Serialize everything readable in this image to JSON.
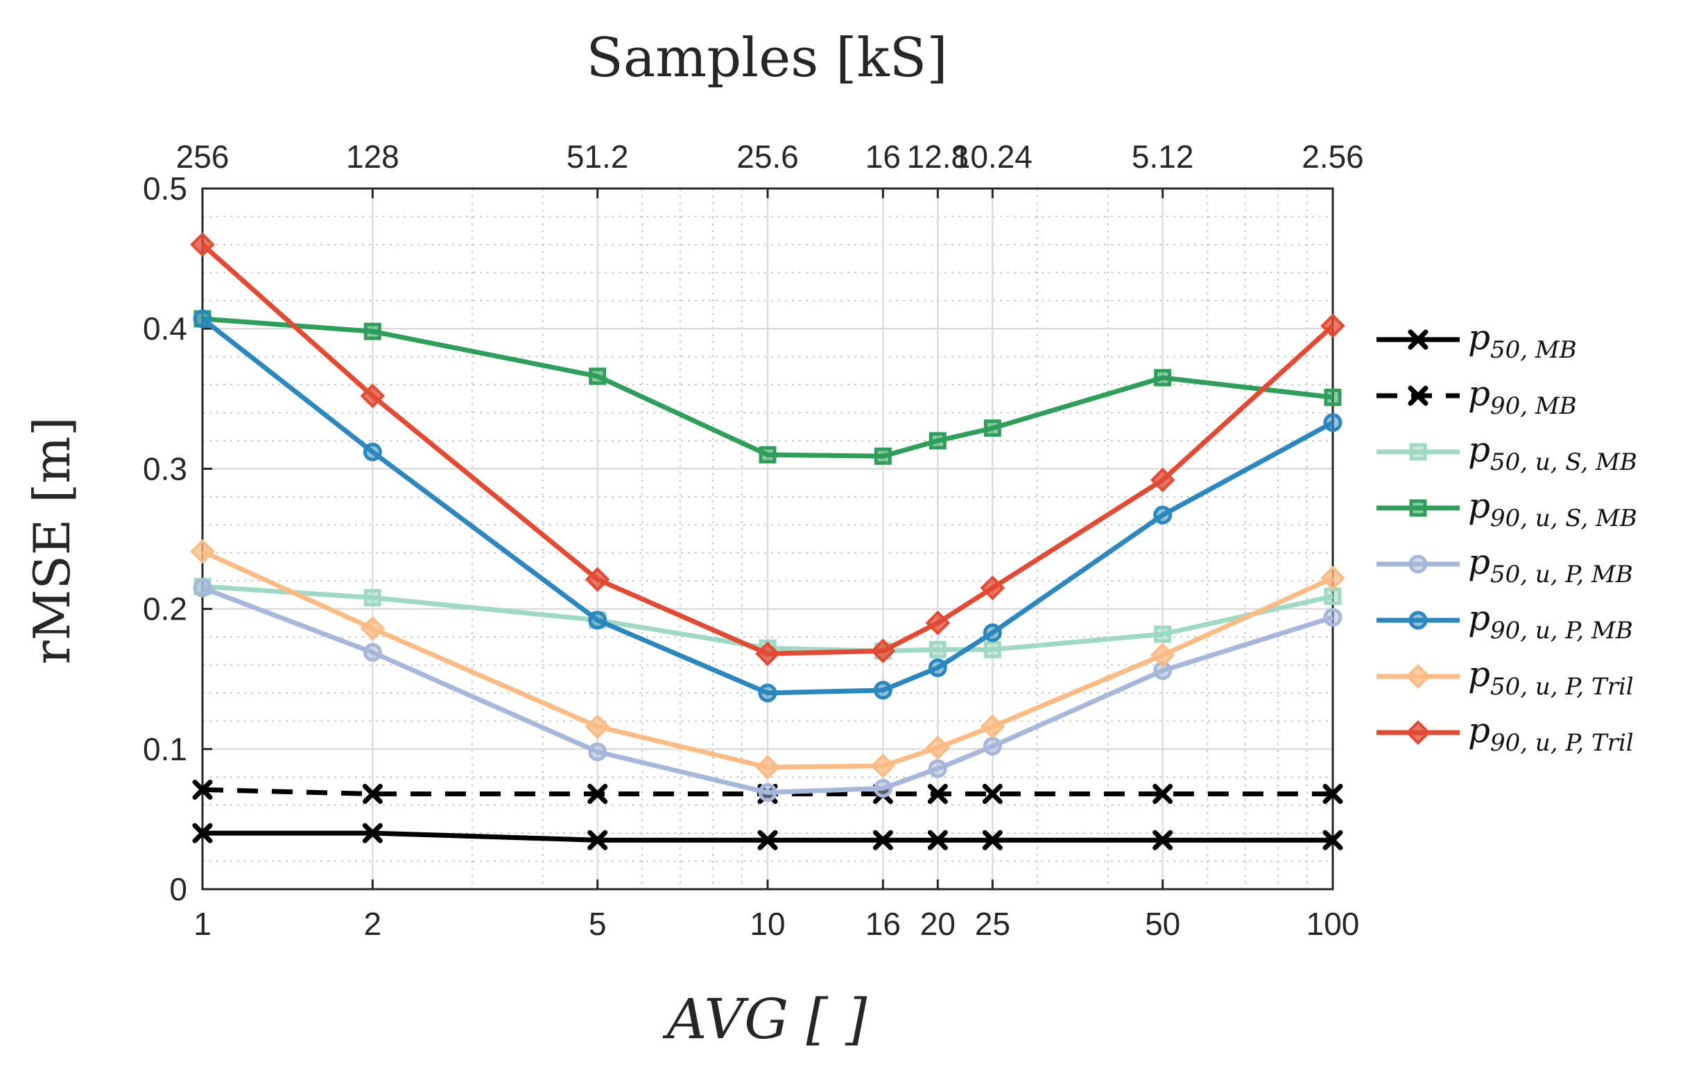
{
  "chart_data": {
    "type": "line",
    "title": "",
    "xlabel": "AVG [ ]",
    "ylabel": "rMSE [m]",
    "top_xlabel": "Samples [kS]",
    "xscale": "log",
    "xlim": [
      1,
      100
    ],
    "ylim": [
      0,
      0.5
    ],
    "grid": true,
    "minor_grid": true,
    "legend_position": "outside-right",
    "x": [
      1,
      2,
      5,
      10,
      16,
      20,
      25,
      50,
      100
    ],
    "x_tick_labels": [
      "1",
      "2",
      "5",
      "10",
      "16",
      "20",
      "25",
      "50",
      "100"
    ],
    "y_ticks": [
      0,
      0.1,
      0.2,
      0.3,
      0.4,
      0.5
    ],
    "y_tick_labels": [
      "0",
      "0.1",
      "0.2",
      "0.3",
      "0.4",
      "0.5"
    ],
    "top_x_ticks": [
      1,
      2,
      5,
      10,
      16,
      20,
      25,
      50,
      100
    ],
    "top_x_tick_labels": [
      "256",
      "128",
      "51.2",
      "25.6",
      "16",
      "12.8",
      "10.24",
      "5.12",
      "2.56"
    ],
    "series": [
      {
        "name": "p50,MB",
        "label_main": "p",
        "label_sub": "50, MB",
        "color": "#000000",
        "dash": "solid",
        "marker": "x",
        "values": [
          0.04,
          0.04,
          0.035,
          0.035,
          0.035,
          0.035,
          0.035,
          0.035,
          0.035
        ]
      },
      {
        "name": "p90,MB",
        "label_main": "p",
        "label_sub": "90, MB",
        "color": "#000000",
        "dash": "dashed",
        "marker": "x",
        "values": [
          0.071,
          0.068,
          0.068,
          0.068,
          0.068,
          0.068,
          0.068,
          0.068,
          0.068
        ]
      },
      {
        "name": "p50,u,S,MB",
        "label_main": "p",
        "label_sub": "50, u, S, MB",
        "color": "#9fd9c3",
        "dash": "solid",
        "marker": "square",
        "values": [
          0.216,
          0.208,
          0.192,
          0.172,
          0.17,
          0.171,
          0.171,
          0.182,
          0.209
        ]
      },
      {
        "name": "p90,u,S,MB",
        "label_main": "p",
        "label_sub": "90, u, S, MB",
        "color": "#2e9e5a",
        "dash": "solid",
        "marker": "square",
        "values": [
          0.407,
          0.398,
          0.366,
          0.31,
          0.309,
          0.32,
          0.329,
          0.365,
          0.351
        ]
      },
      {
        "name": "p50,u,P,MB",
        "label_main": "p",
        "label_sub": "50, u, P, MB",
        "color": "#a7b7da",
        "dash": "solid",
        "marker": "circle",
        "values": [
          0.215,
          0.169,
          0.098,
          0.069,
          0.072,
          0.086,
          0.102,
          0.156,
          0.194
        ]
      },
      {
        "name": "p90,u,P,MB",
        "label_main": "p",
        "label_sub": "90, u, P, MB",
        "color": "#2b87bd",
        "dash": "solid",
        "marker": "circle",
        "values": [
          0.407,
          0.312,
          0.192,
          0.14,
          0.142,
          0.158,
          0.183,
          0.267,
          0.333
        ]
      },
      {
        "name": "p50,u,P,Tril",
        "label_main": "p",
        "label_sub": "50, u, P, Tril",
        "color": "#fbbb85",
        "dash": "solid",
        "marker": "diamond",
        "values": [
          0.241,
          0.186,
          0.116,
          0.087,
          0.088,
          0.101,
          0.116,
          0.167,
          0.222
        ]
      },
      {
        "name": "p90,u,P,Tril",
        "label_main": "p",
        "label_sub": "90, u, P, Tril",
        "color": "#e24a33",
        "dash": "solid",
        "marker": "diamond",
        "values": [
          0.46,
          0.352,
          0.221,
          0.168,
          0.17,
          0.19,
          0.215,
          0.292,
          0.402
        ]
      }
    ]
  }
}
